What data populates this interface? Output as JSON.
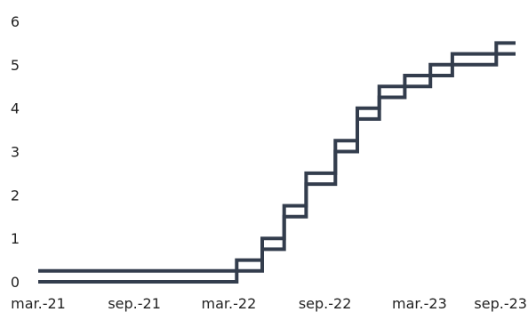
{
  "chart_data": {
    "type": "line",
    "step": true,
    "title": "",
    "xlabel": "",
    "ylabel": "",
    "grid": false,
    "legend": "none",
    "ylim": [
      0,
      6
    ],
    "yticks": [
      0,
      1,
      2,
      3,
      4,
      5,
      6
    ],
    "ytick_labels": [
      "0",
      "1",
      "2",
      "3",
      "4",
      "5",
      "6"
    ],
    "xlim": [
      "2021-03-01",
      "2023-09-01"
    ],
    "xticks": [
      "2021-03-01",
      "2021-09-01",
      "2022-03-01",
      "2022-09-01",
      "2023-03-01",
      "2023-09-01"
    ],
    "xtick_labels": [
      "mar.-21",
      "sep.-21",
      "mar.-22",
      "sep.-22",
      "mar.-23",
      "sep.-23"
    ],
    "series": [
      {
        "color": "#333d4d",
        "points": [
          [
            "2021-03-01",
            0.25
          ],
          [
            "2022-03-16",
            0.5
          ],
          [
            "2022-05-04",
            1.0
          ],
          [
            "2022-06-15",
            1.75
          ],
          [
            "2022-07-27",
            2.5
          ],
          [
            "2022-09-21",
            3.25
          ],
          [
            "2022-11-02",
            4.0
          ],
          [
            "2022-12-14",
            4.5
          ],
          [
            "2023-02-01",
            4.75
          ],
          [
            "2023-03-22",
            5.0
          ],
          [
            "2023-05-03",
            5.25
          ],
          [
            "2023-07-26",
            5.5
          ],
          [
            "2023-09-01",
            5.5
          ]
        ]
      },
      {
        "color": "#333d4d",
        "points": [
          [
            "2021-03-01",
            0.0
          ],
          [
            "2022-03-16",
            0.25
          ],
          [
            "2022-05-04",
            0.75
          ],
          [
            "2022-06-15",
            1.5
          ],
          [
            "2022-07-27",
            2.25
          ],
          [
            "2022-09-21",
            3.0
          ],
          [
            "2022-11-02",
            3.75
          ],
          [
            "2022-12-14",
            4.25
          ],
          [
            "2023-02-01",
            4.5
          ],
          [
            "2023-03-22",
            4.75
          ],
          [
            "2023-05-03",
            5.0
          ],
          [
            "2023-07-26",
            5.25
          ],
          [
            "2023-09-01",
            5.25
          ]
        ]
      }
    ]
  }
}
